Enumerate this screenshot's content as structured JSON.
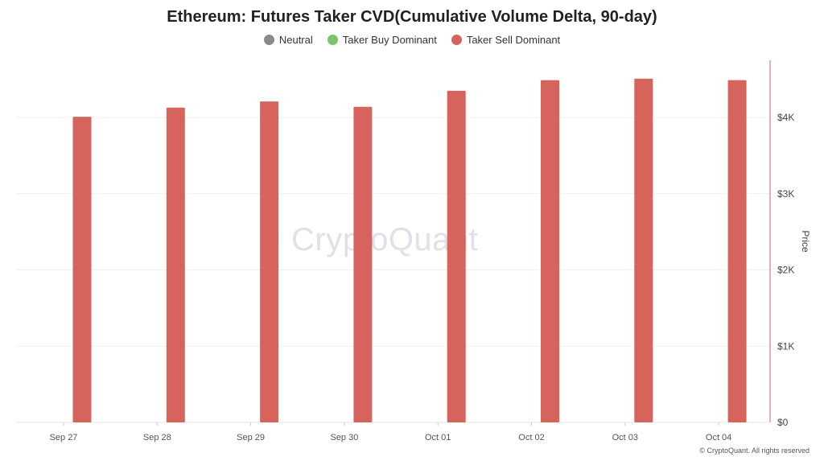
{
  "chart_data": {
    "type": "bar",
    "title": "Ethereum: Futures Taker CVD(Cumulative Volume Delta, 90-day)",
    "legend": [
      {
        "label": "Neutral",
        "color": "#8a8a8a"
      },
      {
        "label": "Taker Buy Dominant",
        "color": "#7cc36a"
      },
      {
        "label": "Taker Sell Dominant",
        "color": "#d7635d"
      }
    ],
    "legend_position": "top-center",
    "categories": [
      "Sep 27",
      "Sep 28",
      "Sep 29",
      "Sep 30",
      "Oct 01",
      "Oct 02",
      "Oct 03",
      "Oct 04"
    ],
    "series": [
      {
        "name": "Taker Sell Dominant",
        "color": "#d7635d",
        "values": [
          4010,
          4130,
          4210,
          4140,
          4350,
          4490,
          4510,
          4490
        ]
      }
    ],
    "y_axis": {
      "position": "right",
      "label": "Price",
      "range": [
        0,
        4750
      ],
      "ticks": [
        0,
        1000,
        2000,
        3000,
        4000
      ],
      "tick_labels": [
        "$0",
        "$1K",
        "$2K",
        "$3K",
        "$4K"
      ],
      "axis_color": "#d7635d"
    },
    "grid": true,
    "watermark": "CryptoQuant",
    "footer": "© CryptoQuant. All rights reserved"
  }
}
